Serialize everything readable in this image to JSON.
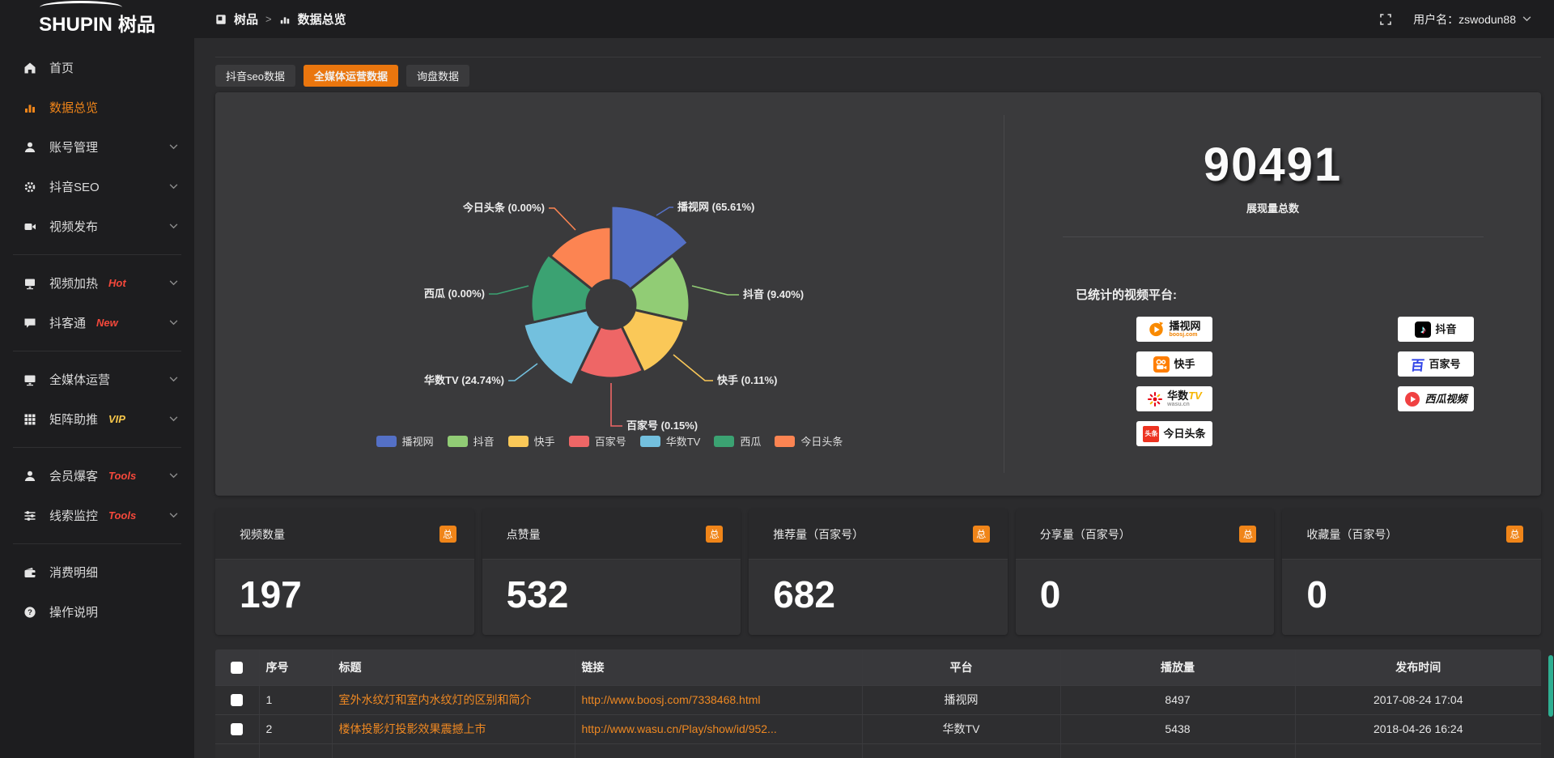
{
  "header": {
    "logo_main": "SHUPIN",
    "logo_cn": "树品",
    "breadcrumb_root": "树品",
    "breadcrumb_sep": ">",
    "breadcrumb_current": "数据总览",
    "username_label": "用户名：zswodun88"
  },
  "sidebar": {
    "items": [
      {
        "label": "首页",
        "icon": "home"
      },
      {
        "label": "数据总览",
        "icon": "chart-bar",
        "active": true
      },
      {
        "label": "账号管理",
        "icon": "user",
        "expandable": true
      },
      {
        "label": "抖音SEO",
        "icon": "gear",
        "expandable": true
      },
      {
        "label": "视频发布",
        "icon": "video",
        "expandable": true,
        "divider_after": true
      },
      {
        "label": "视频加热",
        "tag": "Hot",
        "tag_color": "#f5483b",
        "icon": "screen",
        "expandable": true
      },
      {
        "label": "抖客通",
        "tag": "New",
        "tag_color": "#f5483b",
        "icon": "chat",
        "expandable": true,
        "divider_after": true
      },
      {
        "label": "全媒体运营",
        "icon": "monitor",
        "expandable": true
      },
      {
        "label": "矩阵助推",
        "tag": "VIP",
        "tag_color": "#f6c64a",
        "icon": "grid",
        "expandable": true,
        "divider_after": true
      },
      {
        "label": "会员爆客",
        "tag": "Tools",
        "tag_color": "#f5483b",
        "icon": "user2",
        "expandable": true
      },
      {
        "label": "线索监控",
        "tag": "Tools",
        "tag_color": "#f5483b",
        "icon": "sliders",
        "expandable": true,
        "divider_after": true
      },
      {
        "label": "消费明细",
        "icon": "wallet"
      },
      {
        "label": "操作说明",
        "icon": "question"
      }
    ]
  },
  "tabs": [
    {
      "label": "抖音seo数据",
      "active": false
    },
    {
      "label": "全媒体运营数据",
      "active": true
    },
    {
      "label": "询盘数据",
      "active": false
    }
  ],
  "chart_data": {
    "type": "pie",
    "variant": "nightingale-rose",
    "hole_radius": 30,
    "legend_position": "bottom",
    "items": [
      {
        "name": "播视网",
        "percent": 65.61,
        "label": "播视网 (65.61%)",
        "color": "#5470c6",
        "outer_radius": 122
      },
      {
        "name": "抖音",
        "percent": 9.4,
        "label": "抖音 (9.40%)",
        "color": "#91cc75",
        "outer_radius": 97
      },
      {
        "name": "快手",
        "percent": 0.11,
        "label": "快手 (0.11%)",
        "color": "#fac858",
        "outer_radius": 93
      },
      {
        "name": "百家号",
        "percent": 0.15,
        "label": "百家号 (0.15%)",
        "color": "#ee6666",
        "outer_radius": 91
      },
      {
        "name": "华数TV",
        "percent": 24.74,
        "label": "华数TV (24.74%)",
        "color": "#73c0de",
        "outer_radius": 111
      },
      {
        "name": "西瓜",
        "percent": 0.0,
        "label": "西瓜 (0.00%)",
        "color": "#3ba272",
        "outer_radius": 99
      },
      {
        "name": "今日头条",
        "percent": 0.0,
        "label": "今日头条 (0.00%)",
        "color": "#fc8452",
        "outer_radius": 96
      }
    ]
  },
  "summary": {
    "total_value": "90491",
    "total_label": "展现量总数",
    "platforms_title": "已统计的视频平台:",
    "badges_col1": [
      {
        "name": "播视网",
        "sub": "boosj.com",
        "logo": "boosj"
      },
      {
        "name": "快手",
        "logo": "kuaishou"
      },
      {
        "name": "华数TV",
        "sub": "wasu.cn",
        "logo": "wasu"
      },
      {
        "name": "今日头条",
        "logo": "toutiao"
      }
    ],
    "badges_col2": [
      {
        "name": "抖音",
        "logo": "douyin"
      },
      {
        "name": "百家号",
        "logo": "baijia"
      },
      {
        "name": "西瓜视频",
        "logo": "xigua"
      }
    ]
  },
  "stat_cards": [
    {
      "title": "视频数量",
      "badge": "总",
      "value": "197"
    },
    {
      "title": "点赞量",
      "badge": "总",
      "value": "532"
    },
    {
      "title": "推荐量（百家号）",
      "badge": "总",
      "value": "682"
    },
    {
      "title": "分享量（百家号）",
      "badge": "总",
      "value": "0"
    },
    {
      "title": "收藏量（百家号）",
      "badge": "总",
      "value": "0"
    }
  ],
  "table": {
    "columns": [
      "",
      "序号",
      "标题",
      "链接",
      "平台",
      "播放量",
      "发布时间"
    ],
    "rows": [
      {
        "no": "1",
        "title": "室外水纹灯和室内水纹灯的区别和简介",
        "link": "http://www.boosj.com/7338468.html",
        "platform": "播视网",
        "plays": "8497",
        "time": "2017-08-24 17:04"
      },
      {
        "no": "2",
        "title": "楼体投影灯投影效果震撼上市",
        "link": "http://www.wasu.cn/Play/show/id/952...",
        "platform": "华数TV",
        "plays": "5438",
        "time": "2018-04-26 16:24"
      }
    ]
  },
  "colors": {
    "accent": "#ea760e",
    "badge": "#f08519",
    "link": "#ee8822",
    "scroll_thumb": "#2eaf92"
  }
}
